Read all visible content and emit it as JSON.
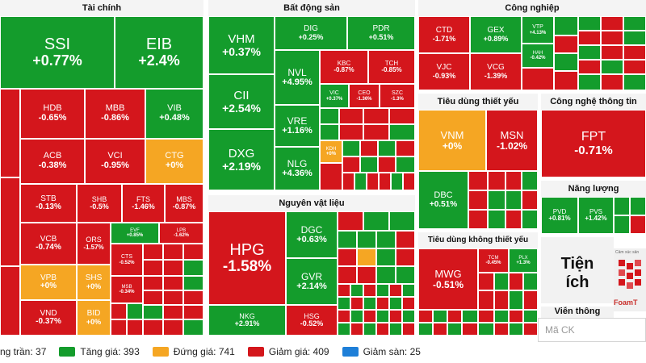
{
  "sectors": {
    "tai_chinh": "Tài chính",
    "bat_dong_san": "Bất động sản",
    "cong_nghiep": "Công nghiệp",
    "nguyen_vat_lieu": "Nguyên vật liệu",
    "tieu_dung_thiet_yeu": "Tiêu dùng thiết yếu",
    "cong_nghe_thong_tin": "Công nghệ thông tin",
    "nang_luong": "Năng lượng",
    "tieu_dung_khong_thiet_yeu": "Tiêu dùng không thiết yếu",
    "tien_ich": "Tiện ích",
    "vien_thong": "Viễn thông"
  },
  "stocks": {
    "ssi": {
      "symbol": "SSI",
      "change": "+0.77%"
    },
    "eib": {
      "symbol": "EIB",
      "change": "+2.4%"
    },
    "hdb": {
      "symbol": "HDB",
      "change": "-0.65%"
    },
    "mbb": {
      "symbol": "MBB",
      "change": "-0.86%"
    },
    "vib": {
      "symbol": "VIB",
      "change": "+0.48%"
    },
    "acb": {
      "symbol": "ACB",
      "change": "-0.38%"
    },
    "vci": {
      "symbol": "VCI",
      "change": "-0.95%"
    },
    "ctg": {
      "symbol": "CTG",
      "change": "+0%"
    },
    "stb": {
      "symbol": "STB",
      "change": "-0.13%"
    },
    "shb": {
      "symbol": "SHB",
      "change": "-0.5%"
    },
    "fts": {
      "symbol": "FTS",
      "change": "-1.46%"
    },
    "mbs": {
      "symbol": "MBS",
      "change": "-0.87%"
    },
    "vcb": {
      "symbol": "VCB",
      "change": "-0.74%"
    },
    "ors": {
      "symbol": "ORS",
      "change": "-1.57%"
    },
    "evf": {
      "symbol": "EVF",
      "change": "+0.85%"
    },
    "lpb": {
      "symbol": "LPB",
      "change": "-1.62%"
    },
    "cts": {
      "symbol": "CTS",
      "change": "-0.52%"
    },
    "vpb": {
      "symbol": "VPB",
      "change": "+0%"
    },
    "shs": {
      "symbol": "SHS",
      "change": "+0%"
    },
    "msb": {
      "symbol": "MSB",
      "change": "-0.34%"
    },
    "vnd": {
      "symbol": "VND",
      "change": "-0.37%"
    },
    "bid": {
      "symbol": "BID",
      "change": "+0%"
    },
    "vhm": {
      "symbol": "VHM",
      "change": "+0.37%"
    },
    "dig": {
      "symbol": "DIG",
      "change": "+0.25%"
    },
    "pdr": {
      "symbol": "PDR",
      "change": "+0.51%"
    },
    "nvl": {
      "symbol": "NVL",
      "change": "+4.95%"
    },
    "kbc": {
      "symbol": "KBC",
      "change": "-0.87%"
    },
    "tch": {
      "symbol": "TCH",
      "change": "-0.85%"
    },
    "cii": {
      "symbol": "CII",
      "change": "+2.54%"
    },
    "vic": {
      "symbol": "VIC",
      "change": "+0.37%"
    },
    "ceo": {
      "symbol": "CEO",
      "change": "-1.36%"
    },
    "szc": {
      "symbol": "SZC",
      "change": "-1.3%"
    },
    "vre": {
      "symbol": "VRE",
      "change": "+1.16%"
    },
    "dxg": {
      "symbol": "DXG",
      "change": "+2.19%"
    },
    "nlg": {
      "symbol": "NLG",
      "change": "+4.36%"
    },
    "kdh": {
      "symbol": "KDH",
      "change": "+0%"
    },
    "ctd": {
      "symbol": "CTD",
      "change": "-1.71%"
    },
    "gex": {
      "symbol": "GEX",
      "change": "+0.89%"
    },
    "vtp": {
      "symbol": "VTP",
      "change": "+4.13%"
    },
    "vjc": {
      "symbol": "VJC",
      "change": "-0.93%"
    },
    "vcg": {
      "symbol": "VCG",
      "change": "-1.39%"
    },
    "hah": {
      "symbol": "HAH",
      "change": "-0.42%"
    },
    "vnm": {
      "symbol": "VNM",
      "change": "+0%"
    },
    "msn": {
      "symbol": "MSN",
      "change": "-1.02%"
    },
    "dbc": {
      "symbol": "DBC",
      "change": "+0.51%"
    },
    "fpt": {
      "symbol": "FPT",
      "change": "-0.71%"
    },
    "pvd": {
      "symbol": "PVD",
      "change": "+0.81%"
    },
    "pvs": {
      "symbol": "PVS",
      "change": "+1.42%"
    },
    "hpg": {
      "symbol": "HPG",
      "change": "-1.58%"
    },
    "dgc": {
      "symbol": "DGC",
      "change": "+0.63%"
    },
    "gvr": {
      "symbol": "GVR",
      "change": "+2.14%"
    },
    "nkg": {
      "symbol": "NKG",
      "change": "+2.91%"
    },
    "hsg": {
      "symbol": "HSG",
      "change": "-0.52%"
    },
    "mwg": {
      "symbol": "MWG",
      "change": "-0.51%"
    },
    "tcm": {
      "symbol": "TCM",
      "change": "-0.45%"
    },
    "plx": {
      "symbol": "PLX",
      "change": "+1.3%"
    }
  },
  "legend": [
    {
      "label": "ng trần: 37",
      "color": "#7c3aed"
    },
    {
      "label": "Tăng giá: 393",
      "color": "#149c2c"
    },
    {
      "label": "Đứng giá: 741",
      "color": "#f5a623"
    },
    {
      "label": "Giảm giá: 409",
      "color": "#d4161c"
    },
    {
      "label": "Giảm sàn: 25",
      "color": "#1e7fd8"
    }
  ],
  "search": {
    "placeholder": "Mã CK"
  },
  "logo": {
    "caption": "Cảm xúc sản",
    "brand": "FoamT"
  },
  "colors": {
    "up": "#149c2c",
    "down": "#d4161c",
    "flat": "#f5a623",
    "ceiling": "#7c3aed",
    "floor": "#1e7fd8"
  }
}
